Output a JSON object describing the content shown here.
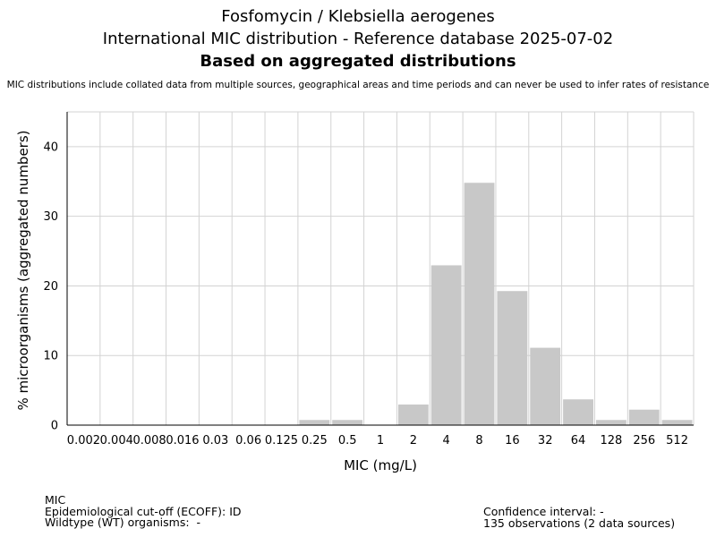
{
  "header": {
    "title_line1": "Fosfomycin / Klebsiella aerogenes",
    "title_line2": "International MIC distribution - Reference database 2025-07-02",
    "title_line3": "Based on aggregated distributions",
    "subtitle": "MIC distributions include collated data from multiple sources, geographical areas and time periods and can never be used to infer rates of resistance"
  },
  "chart_data": {
    "type": "bar",
    "categories": [
      "0.002",
      "0.004",
      "0.008",
      "0.016",
      "0.03",
      "0.06",
      "0.125",
      "0.25",
      "0.5",
      "1",
      "2",
      "4",
      "8",
      "16",
      "32",
      "64",
      "128",
      "256",
      "512"
    ],
    "values": [
      0,
      0,
      0,
      0,
      0,
      0,
      0,
      0.74,
      0.74,
      0,
      2.96,
      22.96,
      34.81,
      19.26,
      11.11,
      3.7,
      0.74,
      2.22,
      0.74
    ],
    "xlabel": "MIC (mg/L)",
    "ylabel": "% microorganisms (aggregated numbers)",
    "ylim": [
      0,
      45
    ],
    "yticks": [
      0,
      10,
      20,
      30,
      40
    ],
    "grid": true,
    "bar_color": "#c8c8c8",
    "grid_color": "#d3d3d3"
  },
  "footer": {
    "left": [
      "MIC",
      "Epidemiological cut-off (ECOFF): ID",
      "Wildtype (WT) organisms:  -"
    ],
    "right": [
      "Confidence interval: -",
      "135 observations (2 data sources)"
    ]
  }
}
